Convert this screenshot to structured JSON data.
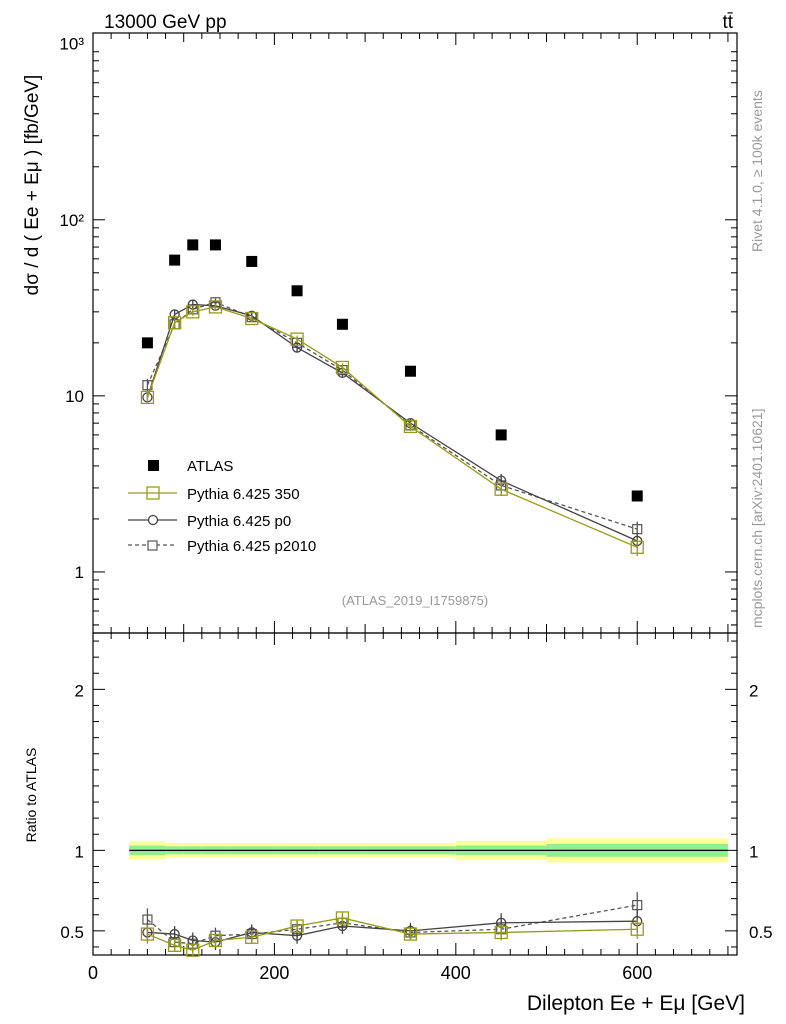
{
  "header": {
    "left_title": "13000 GeV pp",
    "right_title": "tt̄",
    "analysis_id": "(ATLAS_2019_I1759875)",
    "side_label_top": "Rivet 4.1.0, ≥ 100k events",
    "side_label_bottom": "mcplots.cern.ch [arXiv:2401.10621]"
  },
  "colors": {
    "atlas": "#000000",
    "p350": "#9a9a1a",
    "p0": "#444444",
    "p2010": "#555555",
    "band_inner": "#90f090",
    "band_outer": "#ffff99"
  },
  "chart_data": [
    {
      "type": "scatter",
      "name": "main",
      "ylabel": "dσ / d ( Ee + Eμ ) [fb/GeV]",
      "yscale": "log",
      "ylim": [
        0.45,
        1150
      ],
      "xlim": [
        0,
        710
      ],
      "y_tick_labels": [
        "1",
        "10",
        "10²",
        "10³"
      ],
      "x": [
        60,
        90,
        110,
        135,
        175,
        225,
        275,
        350,
        450,
        600
      ],
      "series": [
        {
          "name": "ATLAS",
          "style": "square-filled",
          "values": [
            20,
            59,
            72,
            72,
            58,
            39.5,
            25.5,
            13.8,
            6.0,
            2.7
          ]
        },
        {
          "name": "Pythia 6.425 350",
          "style": "square-open-line",
          "values": [
            9.8,
            26,
            30,
            32,
            27.5,
            21,
            14.5,
            6.7,
            2.95,
            1.38
          ],
          "errors": [
            0.8,
            1.5,
            1.5,
            1.5,
            1.2,
            1.0,
            0.8,
            0.4,
            0.25,
            0.15
          ]
        },
        {
          "name": "Pythia 6.425 p0",
          "style": "circle-open-line",
          "values": [
            9.8,
            29,
            33,
            32.5,
            28.5,
            18.8,
            13.5,
            7.0,
            3.3,
            1.5
          ],
          "errors": [
            0.8,
            1.8,
            1.8,
            1.8,
            1.4,
            1.0,
            0.8,
            0.45,
            0.3,
            0.15
          ]
        },
        {
          "name": "Pythia 6.425 p2010",
          "style": "square-open-dashed",
          "values": [
            11.5,
            25.5,
            31,
            34,
            28,
            20,
            14,
            6.8,
            3.1,
            1.75
          ],
          "errors": [
            1.0,
            1.6,
            1.8,
            1.8,
            1.4,
            1.0,
            0.8,
            0.4,
            0.3,
            0.18
          ]
        }
      ]
    },
    {
      "type": "scatter",
      "name": "ratio",
      "ylabel": "Ratio to ATLAS",
      "xlabel": "Dilepton Ee + Eμ [GeV]",
      "ylim": [
        0.35,
        2.35
      ],
      "xlim": [
        0,
        710
      ],
      "y_ticks": [
        0.5,
        1,
        2
      ],
      "y_tick_labels": [
        "0.5",
        "1",
        "2"
      ],
      "x_ticks": [
        0,
        200,
        400,
        600
      ],
      "x_tick_labels": [
        "0",
        "200",
        "400",
        "600"
      ],
      "x": [
        60,
        90,
        110,
        135,
        175,
        225,
        275,
        350,
        450,
        600
      ],
      "bin_edges": [
        40,
        80,
        100,
        120,
        150,
        200,
        250,
        300,
        400,
        500,
        700
      ],
      "band_inner_halfwidth": [
        0.03,
        0.025,
        0.025,
        0.025,
        0.025,
        0.025,
        0.025,
        0.025,
        0.03,
        0.04
      ],
      "band_outer_halfwidth": [
        0.055,
        0.045,
        0.045,
        0.045,
        0.045,
        0.045,
        0.045,
        0.045,
        0.06,
        0.075
      ],
      "series": [
        {
          "name": "Pythia 6.425 350",
          "style": "square-open-line",
          "values": [
            0.48,
            0.41,
            0.38,
            0.44,
            0.46,
            0.53,
            0.58,
            0.48,
            0.49,
            0.51
          ],
          "errors": [
            0.06,
            0.04,
            0.04,
            0.04,
            0.04,
            0.04,
            0.04,
            0.04,
            0.05,
            0.06
          ]
        },
        {
          "name": "Pythia 6.425 p0",
          "style": "circle-open-line",
          "values": [
            0.49,
            0.48,
            0.44,
            0.43,
            0.49,
            0.47,
            0.53,
            0.5,
            0.55,
            0.56
          ],
          "errors": [
            0.06,
            0.05,
            0.05,
            0.05,
            0.05,
            0.05,
            0.05,
            0.05,
            0.06,
            0.07
          ]
        },
        {
          "name": "Pythia 6.425 p2010",
          "style": "square-open-dashed",
          "values": [
            0.57,
            0.43,
            0.42,
            0.47,
            0.48,
            0.51,
            0.55,
            0.49,
            0.51,
            0.66
          ],
          "errors": [
            0.07,
            0.05,
            0.05,
            0.05,
            0.05,
            0.05,
            0.05,
            0.05,
            0.06,
            0.08
          ]
        }
      ]
    }
  ]
}
